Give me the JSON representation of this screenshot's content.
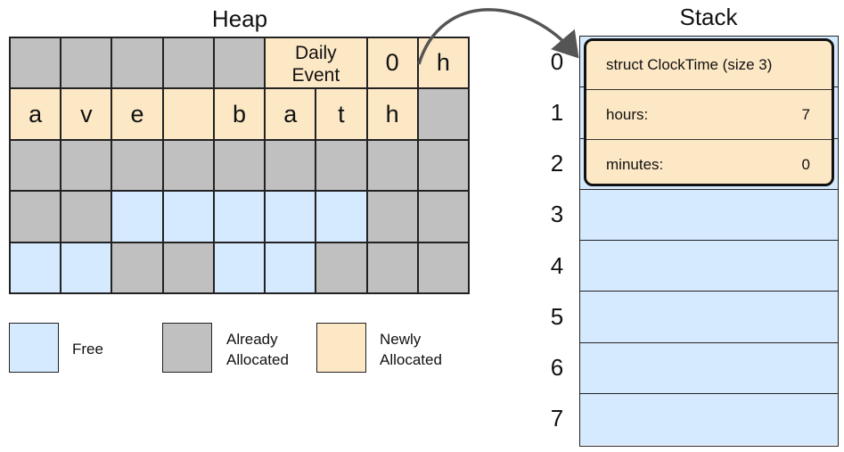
{
  "heap": {
    "title": "Heap",
    "rows": [
      [
        {
          "t": "",
          "s": "alloc"
        },
        {
          "t": "",
          "s": "alloc"
        },
        {
          "t": "",
          "s": "alloc"
        },
        {
          "t": "",
          "s": "alloc"
        },
        {
          "t": "",
          "s": "alloc"
        },
        {
          "t": "Daily Event",
          "s": "new",
          "small": true
        },
        {
          "t": "",
          "s": "new",
          "small": true
        },
        {
          "t": "0",
          "s": "new"
        },
        {
          "t": "h",
          "s": "new"
        }
      ],
      [
        {
          "t": "a",
          "s": "new"
        },
        {
          "t": "v",
          "s": "new"
        },
        {
          "t": "e",
          "s": "new"
        },
        {
          "t": "",
          "s": "new"
        },
        {
          "t": "b",
          "s": "new"
        },
        {
          "t": "a",
          "s": "new"
        },
        {
          "t": "t",
          "s": "new"
        },
        {
          "t": "h",
          "s": "new"
        },
        {
          "t": "",
          "s": "alloc"
        }
      ],
      [
        {
          "t": "",
          "s": "alloc"
        },
        {
          "t": "",
          "s": "alloc"
        },
        {
          "t": "",
          "s": "alloc"
        },
        {
          "t": "",
          "s": "alloc"
        },
        {
          "t": "",
          "s": "alloc"
        },
        {
          "t": "",
          "s": "alloc"
        },
        {
          "t": "",
          "s": "alloc"
        },
        {
          "t": "",
          "s": "alloc"
        },
        {
          "t": "",
          "s": "alloc"
        }
      ],
      [
        {
          "t": "",
          "s": "alloc"
        },
        {
          "t": "",
          "s": "alloc"
        },
        {
          "t": "",
          "s": "free"
        },
        {
          "t": "",
          "s": "free"
        },
        {
          "t": "",
          "s": "free"
        },
        {
          "t": "",
          "s": "free"
        },
        {
          "t": "",
          "s": "free"
        },
        {
          "t": "",
          "s": "alloc"
        },
        {
          "t": "",
          "s": "alloc"
        }
      ],
      [
        {
          "t": "",
          "s": "free"
        },
        {
          "t": "",
          "s": "free"
        },
        {
          "t": "",
          "s": "alloc"
        },
        {
          "t": "",
          "s": "alloc"
        },
        {
          "t": "",
          "s": "free"
        },
        {
          "t": "",
          "s": "free"
        },
        {
          "t": "",
          "s": "alloc"
        },
        {
          "t": "",
          "s": "alloc"
        },
        {
          "t": "",
          "s": "alloc"
        }
      ]
    ]
  },
  "legend": {
    "free": "Free",
    "already_allocated_line1": "Already",
    "already_allocated_line2": "Allocated",
    "newly_allocated_line1": "Newly",
    "newly_allocated_line2": "Allocated"
  },
  "stack": {
    "title": "Stack",
    "indices": [
      "0",
      "1",
      "2",
      "3",
      "4",
      "5",
      "6",
      "7"
    ],
    "struct_header": "struct ClockTime (size 3)",
    "fields": [
      {
        "label": "hours:",
        "value": "7"
      },
      {
        "label": "minutes:",
        "value": "0"
      }
    ]
  },
  "colors": {
    "free": "#d6eaff",
    "already_allocated": "#c0c0c0",
    "newly_allocated": "#fde8c6",
    "arrow": "#555555"
  }
}
